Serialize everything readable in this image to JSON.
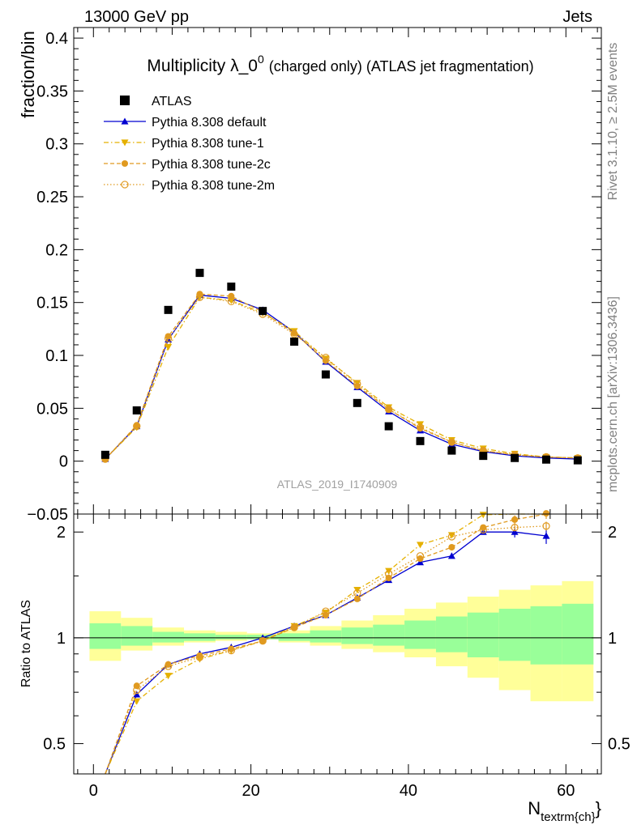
{
  "header": {
    "left": "13000 GeV pp",
    "right": "Jets"
  },
  "side": {
    "rivet": "Rivet 3.1.10, ≥ 2.5M events",
    "mcplots": "mcplots.cern.ch [arXiv:1306.3436]"
  },
  "chart_data": {
    "type": "line",
    "title_main": "Multiplicity λ_0",
    "title_sup": "0",
    "title_tail": "(charged only) (ATLAS jet fragmentation)",
    "ylabel": "fraction/bin",
    "ratio_ylabel": "Ratio to ATLAS",
    "xlabel_main": "N",
    "xlabel_sub": "textrm{ch}",
    "xlabel_close": "}",
    "watermark": "ATLAS_2019_I1740909",
    "xlim": [
      -2.5,
      64.5
    ],
    "ylim": [
      -0.05,
      0.41
    ],
    "ratio_ylim": [
      0.41,
      2.25
    ],
    "ratio_scale": "log",
    "xticks": [
      0,
      20,
      40,
      60
    ],
    "xtick_labels": [
      "0",
      "20",
      "40",
      "60"
    ],
    "yticks": [
      -0.05,
      0,
      0.05,
      0.1,
      0.15,
      0.2,
      0.25,
      0.3,
      0.35,
      0.4
    ],
    "ytick_labels": [
      "−0.05",
      "0",
      "0.05",
      "0.1",
      "0.15",
      "0.2",
      "0.25",
      "0.3",
      "0.35",
      "0.4"
    ],
    "ratio_yticks": [
      0.5,
      1,
      2
    ],
    "ratio_ytick_labels": [
      "0.5",
      "1",
      "2"
    ],
    "x": [
      1.5,
      5.5,
      9.5,
      13.5,
      17.5,
      21.5,
      25.5,
      29.5,
      33.5,
      37.5,
      41.5,
      45.5,
      49.5,
      53.5,
      57.5,
      61.5
    ],
    "bins": [
      [
        -0.5,
        3.5
      ],
      [
        3.5,
        7.5
      ],
      [
        7.5,
        11.5
      ],
      [
        11.5,
        15.5
      ],
      [
        15.5,
        19.5
      ],
      [
        19.5,
        23.5
      ],
      [
        23.5,
        27.5
      ],
      [
        27.5,
        31.5
      ],
      [
        31.5,
        35.5
      ],
      [
        35.5,
        39.5
      ],
      [
        39.5,
        43.5
      ],
      [
        43.5,
        47.5
      ],
      [
        47.5,
        51.5
      ],
      [
        51.5,
        55.5
      ],
      [
        55.5,
        59.5
      ],
      [
        59.5,
        63.5
      ]
    ],
    "data": {
      "name": "ATLAS",
      "values": [
        0.006,
        0.048,
        0.143,
        0.178,
        0.165,
        0.142,
        0.113,
        0.082,
        0.055,
        0.033,
        0.019,
        0.01,
        0.005,
        0.003,
        0.0015,
        0.0008
      ]
    },
    "band_outer": [
      [
        0.86,
        1.19
      ],
      [
        0.92,
        1.14
      ],
      [
        0.95,
        1.07
      ],
      [
        0.97,
        1.05
      ],
      [
        0.98,
        1.04
      ],
      [
        0.99,
        1.03
      ],
      [
        0.97,
        1.05
      ],
      [
        0.95,
        1.08
      ],
      [
        0.93,
        1.12
      ],
      [
        0.91,
        1.16
      ],
      [
        0.88,
        1.21
      ],
      [
        0.83,
        1.26
      ],
      [
        0.77,
        1.31
      ],
      [
        0.71,
        1.37
      ],
      [
        0.66,
        1.41
      ],
      [
        0.66,
        1.45
      ]
    ],
    "band_inner": [
      [
        0.93,
        1.1
      ],
      [
        0.95,
        1.08
      ],
      [
        0.97,
        1.04
      ],
      [
        0.98,
        1.03
      ],
      [
        0.99,
        1.02
      ],
      [
        0.99,
        1.02
      ],
      [
        0.98,
        1.03
      ],
      [
        0.97,
        1.05
      ],
      [
        0.96,
        1.07
      ],
      [
        0.95,
        1.09
      ],
      [
        0.93,
        1.12
      ],
      [
        0.91,
        1.15
      ],
      [
        0.88,
        1.18
      ],
      [
        0.86,
        1.21
      ],
      [
        0.84,
        1.23
      ],
      [
        0.84,
        1.25
      ]
    ],
    "series": [
      {
        "name": "Pythia 8.308 default",
        "color": "#0000d0",
        "marker": "triangle-up",
        "line": "solid",
        "values": [
          0.002,
          0.033,
          0.115,
          0.157,
          0.154,
          0.143,
          0.122,
          0.094,
          0.07,
          0.047,
          0.029,
          0.016,
          0.009,
          0.005,
          0.003,
          0.002
        ],
        "ratio": [
          0.3,
          0.69,
          0.84,
          0.9,
          0.94,
          1.0,
          1.08,
          1.16,
          1.3,
          1.46,
          1.64,
          1.71,
          2.0,
          2.0,
          1.95,
          null
        ],
        "ratio_err": [
          null,
          null,
          null,
          null,
          null,
          null,
          null,
          null,
          null,
          null,
          null,
          null,
          0.03,
          0.07,
          0.1,
          null
        ]
      },
      {
        "name": "Pythia 8.308 tune-1",
        "color": "#e5b000",
        "marker": "triangle-down",
        "line": "dashdot",
        "values": [
          0.002,
          0.032,
          0.108,
          0.155,
          0.152,
          0.14,
          0.123,
          0.097,
          0.074,
          0.051,
          0.035,
          0.02,
          0.012,
          0.007,
          0.004,
          0.003
        ],
        "ratio": [
          0.28,
          0.66,
          0.78,
          0.87,
          0.92,
          0.98,
          1.08,
          1.18,
          1.37,
          1.55,
          1.84,
          1.96,
          2.24,
          2.4,
          2.55,
          null
        ],
        "ratio_err": [
          null,
          null,
          null,
          null,
          null,
          null,
          null,
          null,
          null,
          null,
          null,
          null,
          null,
          null,
          null,
          null
        ]
      },
      {
        "name": "Pythia 8.308 tune-2c",
        "color": "#e09a20",
        "marker": "circle",
        "line": "dashed",
        "values": [
          0.002,
          0.034,
          0.118,
          0.158,
          0.156,
          0.141,
          0.121,
          0.095,
          0.071,
          0.049,
          0.031,
          0.018,
          0.01,
          0.006,
          0.004,
          0.003
        ],
        "ratio": [
          0.31,
          0.73,
          0.84,
          0.89,
          0.93,
          0.98,
          1.07,
          1.16,
          1.29,
          1.48,
          1.68,
          1.81,
          2.06,
          2.17,
          2.26,
          null
        ],
        "ratio_err": [
          null,
          null,
          null,
          null,
          null,
          null,
          null,
          null,
          null,
          null,
          null,
          null,
          0.04,
          0.06,
          0.08,
          null
        ]
      },
      {
        "name": "Pythia 8.308 tune-2m",
        "color": "#e09a20",
        "marker": "circle-open",
        "line": "dotted",
        "values": [
          0.002,
          0.033,
          0.116,
          0.155,
          0.151,
          0.139,
          0.12,
          0.098,
          0.073,
          0.049,
          0.032,
          0.018,
          0.01,
          0.006,
          0.004,
          0.003
        ],
        "ratio": [
          0.3,
          0.71,
          0.83,
          0.88,
          0.92,
          0.98,
          1.07,
          1.19,
          1.34,
          1.52,
          1.71,
          1.94,
          2.03,
          2.06,
          2.08,
          null
        ],
        "ratio_err": [
          null,
          null,
          null,
          null,
          null,
          null,
          null,
          null,
          null,
          null,
          null,
          null,
          0.03,
          0.05,
          0.06,
          null
        ]
      }
    ],
    "legend_position": "top-left",
    "band_colors": {
      "outer": "#ffff99",
      "inner": "#99ff99"
    }
  }
}
